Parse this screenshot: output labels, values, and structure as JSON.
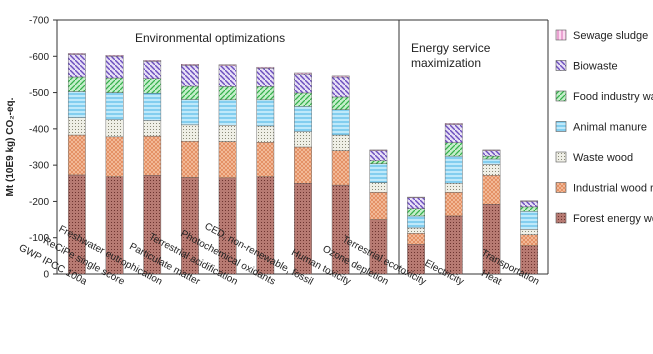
{
  "chart_data": {
    "type": "bar",
    "stacked": true,
    "ylabel": "Mt (10E9 kg) CO₂-eq.",
    "ylim": [
      0,
      -700
    ],
    "yticks": [
      0,
      -100,
      -200,
      -300,
      -400,
      -500,
      -600,
      -700
    ],
    "grid": false,
    "legend_position": "right",
    "section_labels": [
      "Environmental optimizations",
      "Energy service maximization"
    ],
    "categories": [
      "GWP IPCC 100a",
      "ReCiPe single score",
      "Freshwater eutrophication",
      "Particulate matter",
      "Terrestrial acidification",
      "Photochemical oxidants",
      "CED, non-renewable, fossil",
      "Human toxicity",
      "Ozone depletion",
      "Terrestrial ecotoxicity",
      "Electricity",
      "Heat",
      "Transportation"
    ],
    "series": [
      {
        "name": "Forest energy wood",
        "color": "#b5736b",
        "values": [
          -273,
          -268,
          -272,
          -266,
          -265,
          -268,
          -250,
          -245,
          -150,
          -82,
          -160,
          -192,
          -78
        ]
      },
      {
        "name": "Industrial wood residues",
        "color": "#f2b08c",
        "values": [
          -110,
          -110,
          -108,
          -100,
          -100,
          -95,
          -100,
          -95,
          -75,
          -30,
          -65,
          -80,
          -30
        ]
      },
      {
        "name": "Waste wood",
        "color": "#d8d8c8",
        "values": [
          -48,
          -47,
          -43,
          -45,
          -45,
          -45,
          -42,
          -43,
          -27,
          -15,
          -25,
          -30,
          -15
        ]
      },
      {
        "name": "Animal manure",
        "color": "#7fcff0",
        "values": [
          -72,
          -75,
          -75,
          -70,
          -70,
          -72,
          -70,
          -70,
          -52,
          -33,
          -75,
          -15,
          -50
        ]
      },
      {
        "name": "Food industry waste",
        "color": "#7ed48c",
        "values": [
          -40,
          -40,
          -40,
          -37,
          -37,
          -37,
          -37,
          -35,
          -8,
          -20,
          -37,
          -8,
          -12
        ]
      },
      {
        "name": "Biowaste",
        "color": "#a893d8",
        "values": [
          -62,
          -60,
          -48,
          -57,
          -57,
          -50,
          -52,
          -55,
          -28,
          -30,
          -50,
          -15,
          -15
        ]
      },
      {
        "name": "Sewage sludge",
        "color": "#e58fc8",
        "values": [
          -3,
          -3,
          -3,
          -3,
          -3,
          -3,
          -3,
          -3,
          -2,
          -2,
          -3,
          -2,
          -2
        ]
      }
    ]
  }
}
